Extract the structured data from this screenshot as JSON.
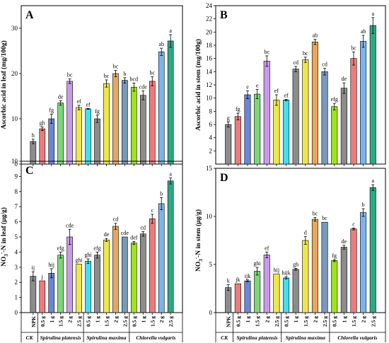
{
  "figure": {
    "categories": [
      "NPK",
      "0.5 g",
      "1 g",
      "1.5 g",
      "2 g",
      "2.5 g",
      "0.5 g",
      "1 g",
      "1.5 g",
      "2 g",
      "2.5 g",
      "0.5 g",
      "1 g",
      "1.5 g",
      "2 g",
      "2.5 g"
    ],
    "groups": [
      {
        "label": "CK",
        "from": 0,
        "to": 0
      },
      {
        "label": "Spirulina platensis",
        "from": 1,
        "to": 5
      },
      {
        "label": "Spirulina maxima",
        "from": 6,
        "to": 10
      },
      {
        "label": "Chlorella vulgaris",
        "from": 11,
        "to": 15
      }
    ],
    "colors": {
      "gray": "#8c8c8c",
      "red": "#f07a7a",
      "blue": "#6b86d8",
      "green": "#7fd67a",
      "purple": "#c89be8",
      "yellow": "#f0e64a",
      "cyan": "#40e0ec",
      "orange": "#e8a85a",
      "steel": "#7a98b8",
      "lime": "#9ae61a",
      "lightblue": "#7ab4ec",
      "teal": "#2ea882"
    }
  },
  "chart_data": [
    {
      "panel": "A",
      "type": "bar",
      "ylabel": "Ascorbic acid in leaf (mg/100g)",
      "ylim": [
        0,
        35
      ],
      "yticks": [
        0,
        10,
        20,
        30
      ],
      "colors": [
        "gray",
        "red",
        "blue",
        "green",
        "purple",
        "yellow",
        "cyan",
        "gray",
        "yellow",
        "orange",
        "steel",
        "lime",
        "gray",
        "red",
        "lightblue",
        "teal"
      ],
      "values": [
        5.0,
        7.8,
        10.0,
        13.5,
        18.3,
        12.5,
        12.2,
        10.0,
        17.8,
        20.0,
        18.5,
        17.0,
        15.2,
        18.3,
        24.8,
        27.2
      ],
      "errors": [
        0.5,
        0.4,
        1.0,
        0.5,
        0.5,
        0.5,
        0.1,
        0.8,
        0.8,
        0.7,
        0.6,
        0.9,
        1.0,
        1.0,
        0.8,
        1.4
      ],
      "labels": [
        "h",
        "gh",
        "fg",
        "de",
        "bc",
        "ef",
        "ef",
        "fg",
        "bc",
        "bc",
        "b",
        "bcd",
        "cde",
        "bc",
        "ab",
        "a"
      ]
    },
    {
      "panel": "B",
      "type": "bar",
      "ylabel": "Ascorbic acid in stem (mg/100g)",
      "ylim": [
        0,
        24
      ],
      "yticks": [
        2,
        4,
        6,
        8,
        10,
        12,
        14,
        16,
        18,
        20,
        22,
        24
      ],
      "colors": [
        "gray",
        "red",
        "blue",
        "green",
        "purple",
        "yellow",
        "cyan",
        "gray",
        "yellow",
        "orange",
        "steel",
        "lime",
        "gray",
        "red",
        "lightblue",
        "teal"
      ],
      "values": [
        6.0,
        7.2,
        10.5,
        10.6,
        15.6,
        9.7,
        9.7,
        14.4,
        15.8,
        18.5,
        14.0,
        8.7,
        11.5,
        16.0,
        18.6,
        21.0
      ],
      "errors": [
        0.4,
        0.5,
        0.6,
        0.7,
        0.8,
        0.8,
        0.1,
        0.4,
        0.4,
        0.4,
        0.5,
        0.5,
        0.8,
        1.0,
        0.9,
        1.2
      ],
      "labels": [
        "g",
        "fg",
        "e",
        "e",
        "bc",
        "ef",
        "ef",
        "cd",
        "bc",
        "ab",
        "cd",
        "efg",
        "de",
        "bc",
        "ab",
        "a"
      ]
    },
    {
      "panel": "C",
      "type": "bar",
      "ylabel": "NO3--N in leaf (μg/g)",
      "ylabel_main": "NO",
      "ylabel_sub": "3",
      "ylabel_sup": "-",
      "ylabel_rest": "-N in leaf (μg/g)",
      "ylim": [
        0,
        10
      ],
      "yticks": [
        0,
        1,
        2,
        3,
        4,
        5,
        6,
        7,
        8,
        9,
        10
      ],
      "colors": [
        "gray",
        "red",
        "blue",
        "green",
        "purple",
        "yellow",
        "cyan",
        "gray",
        "yellow",
        "orange",
        "steel",
        "lime",
        "gray",
        "red",
        "lightblue",
        "teal"
      ],
      "values": [
        2.4,
        2.1,
        2.6,
        3.8,
        5.0,
        3.2,
        3.4,
        3.8,
        4.8,
        5.7,
        5.0,
        4.6,
        5.2,
        6.2,
        7.2,
        8.7
      ],
      "errors": [
        0.3,
        0.0,
        0.3,
        0.2,
        0.5,
        0.0,
        0.15,
        0.2,
        0.1,
        0.2,
        0.0,
        0.1,
        0.15,
        0.3,
        0.4,
        0.2
      ],
      "labels": [
        "ij",
        "j",
        "hij",
        "efg",
        "cde",
        "ghi",
        "ghi",
        "efg",
        "de",
        "cd",
        "cde",
        "def",
        "cd",
        "c",
        "b",
        "a"
      ]
    },
    {
      "panel": "D",
      "type": "bar",
      "ylabel": "NO3--N in stem (μg/g)",
      "ylabel_main": "NO",
      "ylabel_sub": "3",
      "ylabel_sup": "-",
      "ylabel_rest": "-N in stem (μg/g)",
      "ylim": [
        0,
        15
      ],
      "yticks": [
        0,
        5,
        10,
        15
      ],
      "colors": [
        "gray",
        "red",
        "blue",
        "green",
        "purple",
        "yellow",
        "cyan",
        "gray",
        "yellow",
        "orange",
        "steel",
        "lime",
        "gray",
        "red",
        "lightblue",
        "teal"
      ],
      "values": [
        2.6,
        3.0,
        3.3,
        4.3,
        6.0,
        4.0,
        3.6,
        4.5,
        7.5,
        9.7,
        9.4,
        5.4,
        6.8,
        8.7,
        10.4,
        13.0
      ],
      "errors": [
        0.3,
        0.0,
        0.1,
        0.4,
        0.3,
        0.0,
        0.1,
        0.1,
        0.4,
        0.2,
        0.0,
        0.1,
        0.2,
        0.1,
        0.4,
        0.3
      ],
      "labels": [
        "k",
        "jk",
        "ijk",
        "ghi",
        "ef",
        "hij",
        "hijk",
        "gh",
        "d",
        "bc",
        "bc",
        "fg",
        "de",
        "c",
        "b",
        "a"
      ]
    }
  ]
}
